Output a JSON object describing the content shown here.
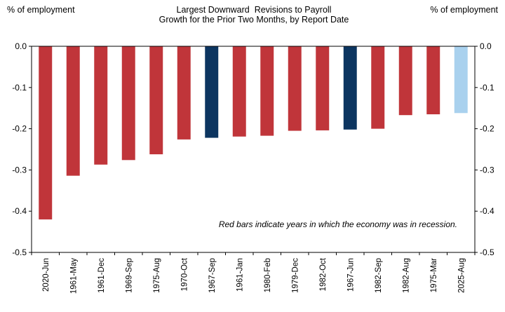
{
  "chart_data": {
    "type": "bar",
    "title_lines": [
      "Largest Downward  Revisions to Payroll",
      "Growth for the Prior Two Months, by Report Date"
    ],
    "ylabel_left": "% of employment",
    "ylabel_right": "% of employment",
    "ylim": [
      -0.5,
      0.0
    ],
    "yticks": [
      0.0,
      -0.1,
      -0.2,
      -0.3,
      -0.4,
      -0.5
    ],
    "ytick_labels": [
      "0.0",
      "-0.1",
      "-0.2",
      "-0.3",
      "-0.4",
      "-0.5"
    ],
    "categories": [
      "2020-Jun",
      "1961-May",
      "1961-Dec",
      "1969-Sep",
      "1975-Aug",
      "1970-Oct",
      "1967-Sep",
      "1961-Jan",
      "1980-Feb",
      "1979-Dec",
      "1982-Oct",
      "1967-Jun",
      "1982-Sep",
      "1982-Aug",
      "1975-Mar",
      "2025-Aug"
    ],
    "values": [
      -0.42,
      -0.314,
      -0.287,
      -0.276,
      -0.262,
      -0.226,
      -0.222,
      -0.219,
      -0.217,
      -0.205,
      -0.204,
      -0.202,
      -0.2,
      -0.167,
      -0.165,
      -0.162
    ],
    "bar_kind": [
      "recession",
      "recession",
      "recession",
      "recession",
      "recession",
      "recession",
      "non-recession",
      "recession",
      "recession",
      "recession",
      "recession",
      "non-recession",
      "recession",
      "recession",
      "recession",
      "latest"
    ],
    "colors": {
      "recession": "#c0353a",
      "non-recession": "#0c3560",
      "latest": "#a9d1ee"
    },
    "annotation": "Red bars indicate years in which the economy was in recession.",
    "grid": false
  }
}
